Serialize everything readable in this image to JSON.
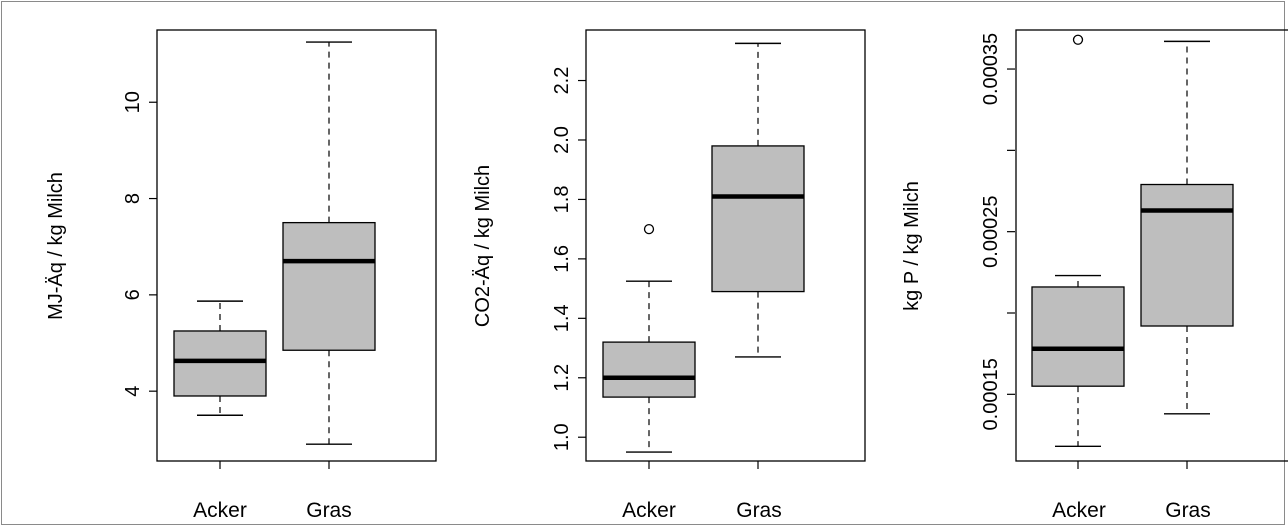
{
  "chart_data": [
    {
      "type": "box",
      "ylabel": "MJ-Äq / kg Milch",
      "categories": [
        "Acker",
        "Gras"
      ],
      "yticks": [
        "4",
        "6",
        "8",
        "10"
      ],
      "ytick_values": [
        4,
        6,
        8,
        10
      ],
      "ylim": [
        2.55,
        11.5
      ],
      "box_color": "#bebebe",
      "boxes": [
        {
          "name": "Acker",
          "whisker_low": 3.5,
          "q1": 3.9,
          "median": 4.63,
          "q3": 5.25,
          "whisker_high": 5.87,
          "outliers": []
        },
        {
          "name": "Gras",
          "whisker_low": 2.9,
          "q1": 4.85,
          "median": 6.7,
          "q3": 7.5,
          "whisker_high": 11.25,
          "outliers": []
        }
      ]
    },
    {
      "type": "box",
      "ylabel": "CO2-Äq / kg Milch",
      "categories": [
        "Acker",
        "Gras"
      ],
      "yticks": [
        "1.0",
        "1.2",
        "1.4",
        "1.6",
        "1.8",
        "2.0",
        "2.2"
      ],
      "ytick_values": [
        1.0,
        1.2,
        1.4,
        1.6,
        1.8,
        2.0,
        2.2
      ],
      "ylim": [
        0.92,
        2.37
      ],
      "box_color": "#bebebe",
      "boxes": [
        {
          "name": "Acker",
          "whisker_low": 0.95,
          "q1": 1.135,
          "median": 1.2,
          "q3": 1.32,
          "whisker_high": 1.525,
          "outliers": [
            1.7
          ]
        },
        {
          "name": "Gras",
          "whisker_low": 1.27,
          "q1": 1.49,
          "median": 1.81,
          "q3": 1.98,
          "whisker_high": 2.325,
          "outliers": []
        }
      ]
    },
    {
      "type": "box",
      "ylabel": "kg P / kg Milch",
      "categories": [
        "Acker",
        "Gras"
      ],
      "yticks": [
        "0.00015",
        "0.00025",
        "0.00035"
      ],
      "ytick_values": [
        0.00015,
        0.0002,
        0.00025,
        0.0003,
        0.00035
      ],
      "ytick_label_values": [
        0.00015,
        0.00025,
        0.00035
      ],
      "ylim": [
        0.000109,
        0.000374
      ],
      "box_color": "#bebebe",
      "boxes": [
        {
          "name": "Acker",
          "whisker_low": 0.000118,
          "q1": 0.000155,
          "median": 0.000178,
          "q3": 0.000216,
          "whisker_high": 0.000223,
          "outliers": [
            0.000368
          ]
        },
        {
          "name": "Gras",
          "whisker_low": 0.000138,
          "q1": 0.000192,
          "median": 0.000263,
          "q3": 0.000279,
          "whisker_high": 0.000367,
          "outliers": []
        }
      ]
    }
  ]
}
